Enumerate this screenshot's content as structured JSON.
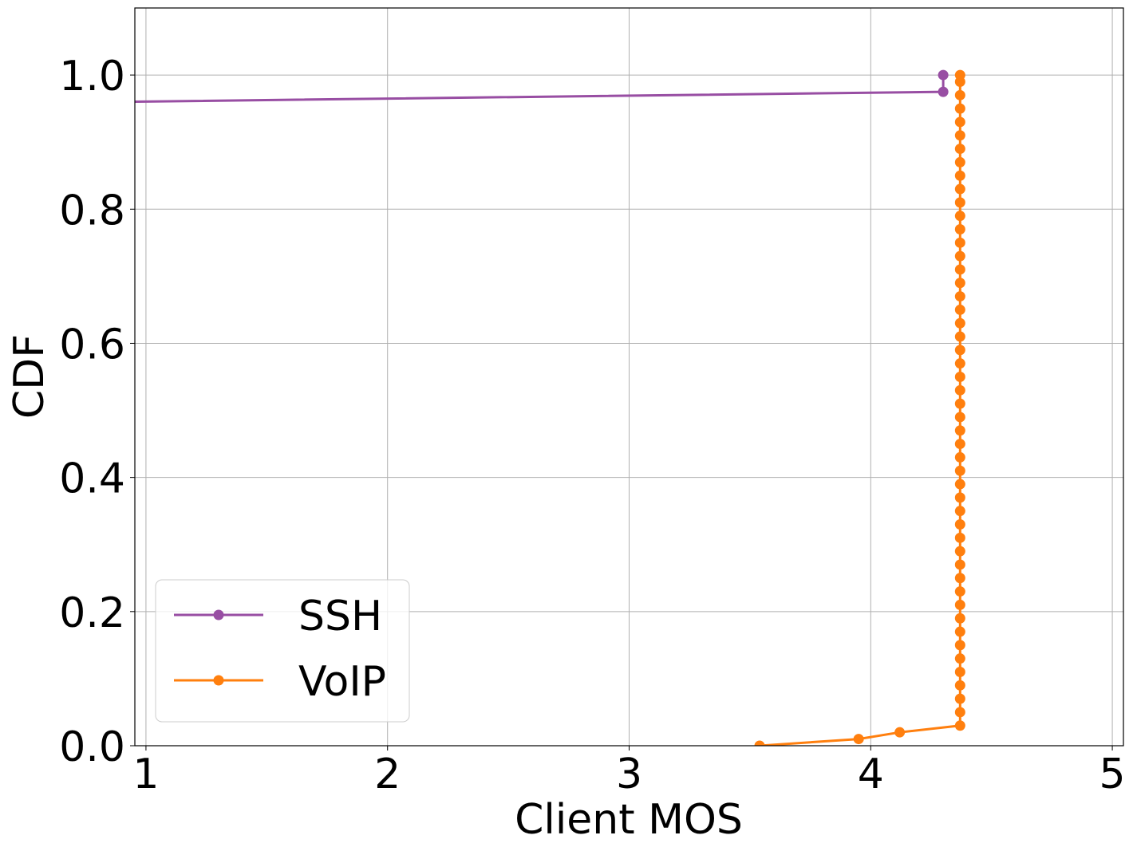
{
  "chart_data": {
    "type": "line",
    "xlabel": "Client MOS",
    "ylabel": "CDF",
    "xlim": [
      0.954,
      5.046
    ],
    "ylim": [
      0,
      1.1
    ],
    "xticks": [
      1,
      2,
      3,
      4,
      5
    ],
    "yticks": [
      {
        "value": 0,
        "label": "0.0"
      },
      0.2,
      0.4,
      0.6,
      0.8,
      {
        "value": 1,
        "label": "1.0"
      }
    ],
    "grid": true,
    "legend": "lower left",
    "series": [
      {
        "name": "SSH",
        "color": "#984ea3",
        "x": [
          0.9,
          4.3,
          4.3
        ],
        "values": [
          0.96,
          0.975,
          1.0
        ]
      },
      {
        "name": "VoIP",
        "color": "#ff7f0e",
        "x": [
          3.54,
          3.95,
          4.12,
          4.37,
          4.37,
          4.37,
          4.37,
          4.37,
          4.37,
          4.37,
          4.37,
          4.37,
          4.37,
          4.37,
          4.37,
          4.37,
          4.37,
          4.37,
          4.37,
          4.37,
          4.37,
          4.37,
          4.37,
          4.37,
          4.37,
          4.37,
          4.37,
          4.37,
          4.37,
          4.37,
          4.37,
          4.37,
          4.37,
          4.37,
          4.37,
          4.37,
          4.37,
          4.37,
          4.37,
          4.37,
          4.37,
          4.37,
          4.37,
          4.37,
          4.37,
          4.37,
          4.37,
          4.37,
          4.37,
          4.37,
          4.37,
          4.37,
          4.37
        ],
        "values": [
          0.0,
          0.01,
          0.02,
          0.03,
          0.05,
          0.07,
          0.09,
          0.11,
          0.13,
          0.15,
          0.17,
          0.19,
          0.21,
          0.23,
          0.25,
          0.27,
          0.29,
          0.31,
          0.33,
          0.35,
          0.37,
          0.39,
          0.41,
          0.43,
          0.45,
          0.47,
          0.49,
          0.51,
          0.53,
          0.55,
          0.57,
          0.59,
          0.61,
          0.63,
          0.65,
          0.67,
          0.69,
          0.71,
          0.73,
          0.75,
          0.77,
          0.79,
          0.81,
          0.83,
          0.85,
          0.87,
          0.89,
          0.91,
          0.93,
          0.95,
          0.97,
          0.99,
          1.0
        ]
      }
    ]
  }
}
